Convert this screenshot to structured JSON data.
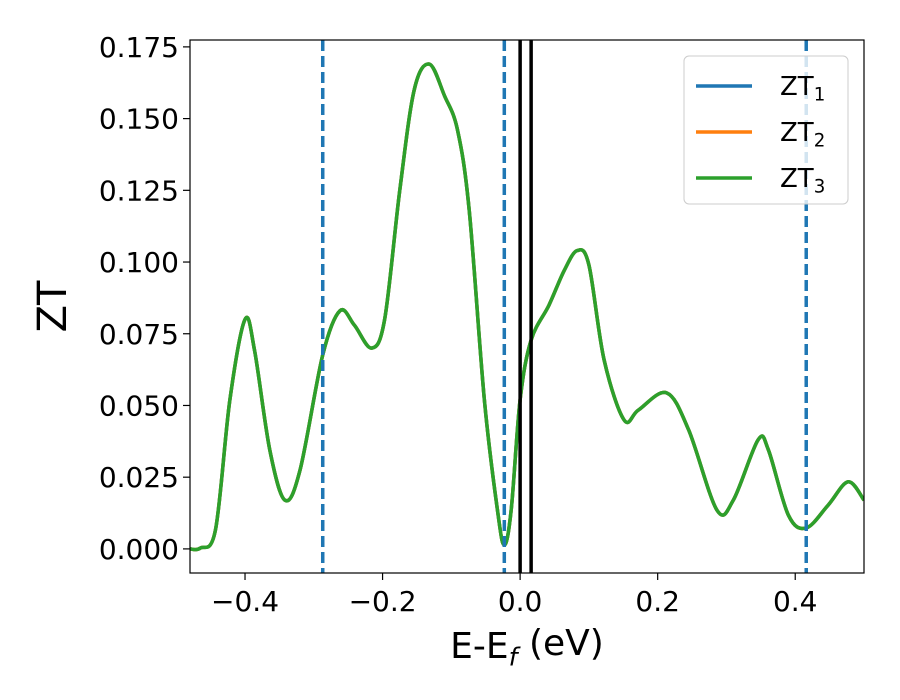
{
  "chart_data": {
    "type": "line",
    "xlabel": "E-E_f (eV)",
    "ylabel": "ZT",
    "xlim": [
      -0.48,
      0.5
    ],
    "ylim": [
      -0.0084,
      0.1774
    ],
    "xticks": [
      {
        "value": -0.4,
        "label": "−0.4"
      },
      {
        "value": -0.2,
        "label": "−0.2"
      },
      {
        "value": 0.0,
        "label": "0.0"
      },
      0.2,
      0.4
    ],
    "yticks": [
      {
        "value": 0,
        "label": "0.000"
      },
      {
        "value": 0.025,
        "label": "0.025"
      },
      {
        "value": 0.05,
        "label": "0.050"
      },
      {
        "value": 0.075,
        "label": "0.075"
      },
      {
        "value": 0.1,
        "label": "0.100"
      },
      {
        "value": 0.125,
        "label": "0.125"
      },
      {
        "value": 0.15,
        "label": "0.150"
      },
      {
        "value": 0.175,
        "label": "0.175"
      }
    ],
    "legend": "upper right",
    "x": [
      -0.48,
      -0.465,
      -0.443,
      -0.422,
      -0.4,
      -0.386,
      -0.364,
      -0.342,
      -0.32,
      -0.287,
      -0.262,
      -0.241,
      -0.216,
      -0.197,
      -0.175,
      -0.154,
      -0.132,
      -0.11,
      -0.091,
      -0.074,
      -0.052,
      -0.033,
      -0.023,
      -0.013,
      0.0,
      0.016,
      0.042,
      0.064,
      0.083,
      0.1,
      0.122,
      0.151,
      0.172,
      0.213,
      0.245,
      0.286,
      0.31,
      0.346,
      0.361,
      0.39,
      0.416,
      0.448,
      0.477,
      0.5
    ],
    "series": [
      {
        "name": "ZT_1",
        "color": "#1f77b4",
        "values": [
          0.0,
          0.0003,
          0.0066,
          0.052,
          0.08,
          0.069,
          0.0345,
          0.017,
          0.0275,
          0.0676,
          0.083,
          0.078,
          0.07,
          0.08,
          0.125,
          0.16,
          0.169,
          0.158,
          0.146,
          0.118,
          0.052,
          0.0136,
          0.0014,
          0.0136,
          0.052,
          0.0728,
          0.085,
          0.097,
          0.104,
          0.099,
          0.066,
          0.045,
          0.0484,
          0.0544,
          0.0415,
          0.0136,
          0.017,
          0.038,
          0.0345,
          0.0118,
          0.0073,
          0.0153,
          0.0234,
          0.017
        ]
      },
      {
        "name": "ZT_2",
        "color": "#ff7f0e",
        "values": [
          0.0,
          0.0003,
          0.0066,
          0.052,
          0.08,
          0.069,
          0.0345,
          0.017,
          0.0275,
          0.0676,
          0.083,
          0.078,
          0.07,
          0.08,
          0.125,
          0.16,
          0.169,
          0.158,
          0.146,
          0.118,
          0.052,
          0.0136,
          0.0014,
          0.0136,
          0.052,
          0.0728,
          0.085,
          0.097,
          0.104,
          0.099,
          0.066,
          0.045,
          0.0484,
          0.0544,
          0.0415,
          0.0136,
          0.017,
          0.038,
          0.0345,
          0.0118,
          0.0073,
          0.0153,
          0.0234,
          0.017
        ]
      },
      {
        "name": "ZT_3",
        "color": "#2ca02c",
        "values": [
          0.0,
          0.0003,
          0.0066,
          0.052,
          0.08,
          0.069,
          0.0345,
          0.017,
          0.0275,
          0.0676,
          0.083,
          0.078,
          0.07,
          0.08,
          0.125,
          0.16,
          0.169,
          0.158,
          0.146,
          0.118,
          0.052,
          0.0136,
          0.0014,
          0.0136,
          0.052,
          0.0728,
          0.085,
          0.097,
          0.104,
          0.099,
          0.066,
          0.045,
          0.0484,
          0.0544,
          0.0415,
          0.0136,
          0.017,
          0.038,
          0.0345,
          0.0118,
          0.0073,
          0.0153,
          0.0234,
          0.017
        ]
      }
    ],
    "vlines": [
      {
        "value": -0.287,
        "color": "#1f77b4",
        "style": "dashed"
      },
      {
        "value": -0.023,
        "color": "#1f77b4",
        "style": "dashed"
      },
      {
        "value": 0.416,
        "color": "#1f77b4",
        "style": "dashed"
      },
      {
        "value": 0.0,
        "color": "#000000",
        "style": "solid"
      },
      {
        "value": 0.016,
        "color": "#000000",
        "style": "solid"
      }
    ]
  }
}
